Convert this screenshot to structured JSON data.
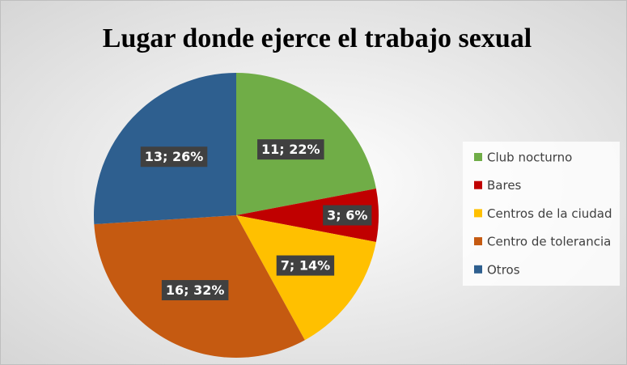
{
  "chart_data": {
    "type": "pie",
    "title": "Lugar donde ejerce el trabajo sexual",
    "categories": [
      "Club nocturno",
      "Bares",
      "Centros de la ciudad",
      "Centro de tolerancia",
      "Otros"
    ],
    "values": [
      11,
      3,
      7,
      16,
      13
    ],
    "value_labels": [
      "11; 22%",
      "3; 6%",
      "7; 14%",
      "16; 32%",
      "13; 26%"
    ],
    "colors": [
      "#70ad47",
      "#c00000",
      "#ffc000",
      "#c55a11",
      "#2e5f8f"
    ],
    "legend": "right"
  }
}
